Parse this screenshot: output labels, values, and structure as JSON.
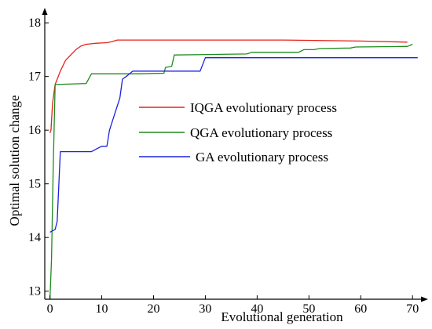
{
  "chart_data": {
    "type": "line",
    "title": "",
    "xlabel": "Evolutional generation",
    "ylabel": "Optimal solution change",
    "xlim": [
      -1,
      73
    ],
    "ylim": [
      12.85,
      18.25
    ],
    "xticks": [
      0,
      10,
      20,
      30,
      40,
      50,
      60,
      70
    ],
    "yticks": [
      13,
      14,
      15,
      16,
      17,
      18
    ],
    "grid": false,
    "legend_placement": "center-left",
    "series": [
      {
        "name": "IQGA evolutionary process",
        "color": "#e8201a",
        "points": [
          [
            0,
            15.95
          ],
          [
            0.2,
            16.0
          ],
          [
            0.5,
            16.5
          ],
          [
            1,
            16.85
          ],
          [
            2,
            17.1
          ],
          [
            3,
            17.3
          ],
          [
            4,
            17.4
          ],
          [
            5,
            17.5
          ],
          [
            6,
            17.57
          ],
          [
            7,
            17.6
          ],
          [
            8,
            17.61
          ],
          [
            9,
            17.62
          ],
          [
            11,
            17.63
          ],
          [
            12,
            17.65
          ],
          [
            13,
            17.68
          ],
          [
            30,
            17.68
          ],
          [
            45,
            17.68
          ],
          [
            60,
            17.66
          ],
          [
            69,
            17.64
          ]
        ]
      },
      {
        "name": "QGA evolutionary process",
        "color": "#1e8c1e",
        "points": [
          [
            0,
            12.85
          ],
          [
            0.3,
            13.6
          ],
          [
            0.6,
            15.2
          ],
          [
            1,
            16.85
          ],
          [
            7,
            16.87
          ],
          [
            8,
            17.05
          ],
          [
            17,
            17.05
          ],
          [
            22,
            17.06
          ],
          [
            22.3,
            17.17
          ],
          [
            23.5,
            17.19
          ],
          [
            24,
            17.4
          ],
          [
            38,
            17.42
          ],
          [
            39,
            17.45
          ],
          [
            48,
            17.45
          ],
          [
            49,
            17.5
          ],
          [
            51,
            17.5
          ],
          [
            52,
            17.52
          ],
          [
            58,
            17.53
          ],
          [
            59,
            17.55
          ],
          [
            69,
            17.56
          ],
          [
            70,
            17.6
          ]
        ]
      },
      {
        "name": "GA evolutionary process",
        "color": "#1a22e0",
        "points": [
          [
            0,
            14.1
          ],
          [
            1,
            14.15
          ],
          [
            1.4,
            14.3
          ],
          [
            2,
            15.6
          ],
          [
            8,
            15.6
          ],
          [
            9,
            15.65
          ],
          [
            10,
            15.7
          ],
          [
            11,
            15.7
          ],
          [
            11.5,
            16.0
          ],
          [
            12.5,
            16.3
          ],
          [
            13.5,
            16.6
          ],
          [
            14,
            16.95
          ],
          [
            15,
            17.02
          ],
          [
            16,
            17.1
          ],
          [
            22,
            17.1
          ],
          [
            29,
            17.1
          ],
          [
            30,
            17.35
          ],
          [
            71,
            17.35
          ]
        ]
      }
    ]
  }
}
